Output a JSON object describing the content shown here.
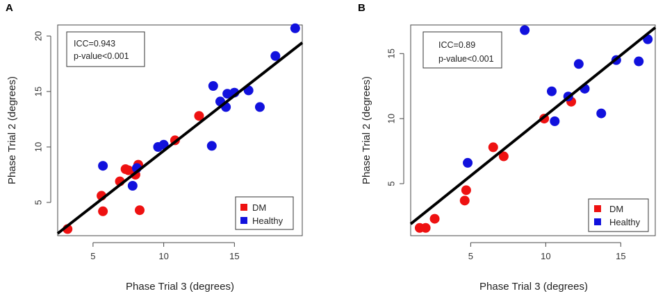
{
  "chart_data": [
    {
      "type": "scatter",
      "panel_label": "A",
      "xlabel": "Phase Trial 3 (degrees)",
      "ylabel": "Phase Trial 2 (degrees)",
      "xlim": [
        2.5,
        19.8
      ],
      "ylim": [
        2.0,
        21.0
      ],
      "xticks": [
        5,
        10,
        15
      ],
      "yticks": [
        5,
        10,
        15,
        20
      ],
      "annotation": [
        "ICC=0.943",
        "p-value<0.001"
      ],
      "fit_line": {
        "x": [
          2.5,
          19.8
        ],
        "y": [
          2.2,
          19.4
        ]
      },
      "legend": {
        "position": "bottom-right",
        "entries": [
          {
            "label": "DM",
            "color": "#ee1111"
          },
          {
            "label": "Healthy",
            "color": "#1111dd"
          }
        ]
      },
      "series": [
        {
          "name": "DM",
          "color": "#ee1111",
          "points": [
            [
              3.2,
              2.6
            ],
            [
              5.6,
              5.6
            ],
            [
              5.7,
              4.2
            ],
            [
              6.9,
              6.9
            ],
            [
              7.3,
              8.0
            ],
            [
              7.5,
              7.9
            ],
            [
              8.0,
              7.5
            ],
            [
              8.2,
              8.4
            ],
            [
              8.3,
              4.3
            ],
            [
              10.8,
              10.6
            ],
            [
              12.5,
              12.8
            ]
          ]
        },
        {
          "name": "Healthy",
          "color": "#1111dd",
          "points": [
            [
              5.7,
              8.3
            ],
            [
              7.8,
              6.5
            ],
            [
              8.1,
              8.1
            ],
            [
              9.6,
              10.0
            ],
            [
              10.0,
              10.2
            ],
            [
              13.4,
              10.1
            ],
            [
              13.5,
              15.5
            ],
            [
              14.0,
              14.1
            ],
            [
              14.4,
              13.6
            ],
            [
              14.5,
              14.8
            ],
            [
              15.0,
              14.9
            ],
            [
              16.0,
              15.1
            ],
            [
              16.8,
              13.6
            ],
            [
              17.9,
              18.2
            ],
            [
              19.3,
              20.7
            ]
          ]
        }
      ]
    },
    {
      "type": "scatter",
      "panel_label": "B",
      "xlabel": "Phase Trial 3 (degrees)",
      "ylabel": "Phase Trial 2 (degrees)",
      "xlim": [
        1.0,
        17.3
      ],
      "ylim": [
        1.0,
        17.2
      ],
      "xticks": [
        5,
        10,
        15
      ],
      "yticks": [
        5,
        10,
        15
      ],
      "annotation": [
        "ICC=0.89",
        "p-value<0.001"
      ],
      "fit_line": {
        "x": [
          1.0,
          17.3
        ],
        "y": [
          1.9,
          17.0
        ]
      },
      "legend": {
        "position": "bottom-right",
        "entries": [
          {
            "label": "DM",
            "color": "#ee1111"
          },
          {
            "label": "Healthy",
            "color": "#1111dd"
          }
        ]
      },
      "series": [
        {
          "name": "DM",
          "color": "#ee1111",
          "points": [
            [
              1.6,
              1.6
            ],
            [
              2.0,
              1.6
            ],
            [
              2.6,
              2.3
            ],
            [
              4.6,
              3.7
            ],
            [
              4.7,
              4.5
            ],
            [
              6.5,
              7.8
            ],
            [
              7.2,
              7.1
            ],
            [
              9.9,
              10.0
            ],
            [
              11.7,
              11.3
            ]
          ]
        },
        {
          "name": "Healthy",
          "color": "#1111dd",
          "points": [
            [
              4.8,
              6.6
            ],
            [
              8.6,
              16.8
            ],
            [
              10.4,
              12.1
            ],
            [
              10.6,
              9.8
            ],
            [
              11.5,
              11.7
            ],
            [
              12.2,
              14.2
            ],
            [
              12.6,
              12.3
            ],
            [
              13.7,
              10.4
            ],
            [
              14.7,
              14.5
            ],
            [
              16.2,
              14.4
            ],
            [
              16.8,
              16.1
            ]
          ]
        }
      ]
    }
  ]
}
